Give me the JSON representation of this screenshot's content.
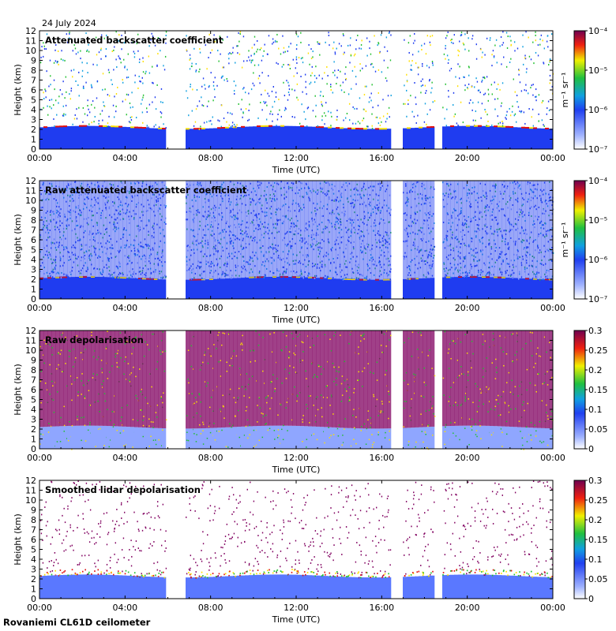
{
  "header": {
    "date": "24 July 2024"
  },
  "footer": {
    "instrument": "Rovaniemi CL61D ceilometer"
  },
  "colors": {
    "blue": "#1f3cf0",
    "lightblue": "#8fa6ff",
    "green": "#22c030",
    "yellow": "#ffe000",
    "red": "#e01010",
    "purple": "#800060",
    "white": "#ffffff"
  },
  "chart_data": [
    {
      "type": "heatmap",
      "title": "Attenuated backscatter coefficient",
      "xlabel": "Time (UTC)",
      "ylabel": "Height (km)",
      "x_ticks": [
        "00:00",
        "04:00",
        "08:00",
        "12:00",
        "16:00",
        "20:00",
        "00:00"
      ],
      "y_ticks": [
        0,
        1,
        2,
        3,
        4,
        5,
        6,
        7,
        8,
        9,
        10,
        11,
        12
      ],
      "ylim": [
        0,
        12
      ],
      "xlim_hours": [
        0,
        24
      ],
      "data_gaps_hours": [
        [
          6.0,
          6.9
        ],
        [
          16.4,
          16.9
        ],
        [
          18.4,
          18.9
        ]
      ],
      "boundary_layer_km": 2.2,
      "colorbar": {
        "scale": "log",
        "ticks": [
          "10⁻⁷",
          "10⁻⁶",
          "10⁻⁵",
          "10⁻⁴"
        ],
        "unit": "m⁻¹ sr⁻¹"
      },
      "field": "att"
    },
    {
      "type": "heatmap",
      "title": "Raw attenuated backscatter coefficient",
      "xlabel": "Time (UTC)",
      "ylabel": "Height (km)",
      "x_ticks": [
        "00:00",
        "04:00",
        "08:00",
        "12:00",
        "16:00",
        "20:00",
        "00:00"
      ],
      "y_ticks": [
        0,
        1,
        2,
        3,
        4,
        5,
        6,
        7,
        8,
        9,
        10,
        11,
        12
      ],
      "ylim": [
        0,
        12
      ],
      "xlim_hours": [
        0,
        24
      ],
      "data_gaps_hours": [
        [
          6.0,
          6.9
        ],
        [
          16.4,
          16.9
        ],
        [
          18.4,
          18.9
        ]
      ],
      "boundary_layer_km": 2.1,
      "colorbar": {
        "scale": "log",
        "ticks": [
          "10⁻⁷",
          "10⁻⁶",
          "10⁻⁵",
          "10⁻⁴"
        ],
        "unit": "m⁻¹ sr⁻¹"
      },
      "field": "raw"
    },
    {
      "type": "heatmap",
      "title": "Raw depolarisation",
      "xlabel": "Time (UTC)",
      "ylabel": "Height (km)",
      "x_ticks": [
        "00:00",
        "04:00",
        "08:00",
        "12:00",
        "16:00",
        "20:00",
        "00:00"
      ],
      "y_ticks": [
        0,
        1,
        2,
        3,
        4,
        5,
        6,
        7,
        8,
        9,
        10,
        11,
        12
      ],
      "ylim": [
        0,
        12
      ],
      "xlim_hours": [
        0,
        24
      ],
      "data_gaps_hours": [
        [
          6.0,
          6.9
        ],
        [
          16.4,
          16.9
        ],
        [
          18.4,
          18.9
        ]
      ],
      "boundary_layer_km": 2.2,
      "colorbar": {
        "scale": "linear",
        "ticks": [
          "0",
          "0.05",
          "0.1",
          "0.15",
          "0.2",
          "0.25",
          "0.3"
        ],
        "unit": ""
      },
      "field": "rawdep"
    },
    {
      "type": "heatmap",
      "title": "Smoothed lidar depolarisation",
      "xlabel": "Time (UTC)",
      "ylabel": "Height (km)",
      "x_ticks": [
        "00:00",
        "04:00",
        "08:00",
        "12:00",
        "16:00",
        "20:00",
        "00:00"
      ],
      "y_ticks": [
        0,
        1,
        2,
        3,
        4,
        5,
        6,
        7,
        8,
        9,
        10,
        11,
        12
      ],
      "ylim": [
        0,
        12
      ],
      "xlim_hours": [
        0,
        24
      ],
      "data_gaps_hours": [
        [
          6.0,
          6.9
        ],
        [
          16.4,
          16.9
        ],
        [
          18.4,
          18.9
        ]
      ],
      "boundary_layer_km": 2.3,
      "colorbar": {
        "scale": "linear",
        "ticks": [
          "0",
          "0.05",
          "0.1",
          "0.15",
          "0.2",
          "0.25",
          "0.3"
        ],
        "unit": ""
      },
      "field": "smdep"
    }
  ]
}
